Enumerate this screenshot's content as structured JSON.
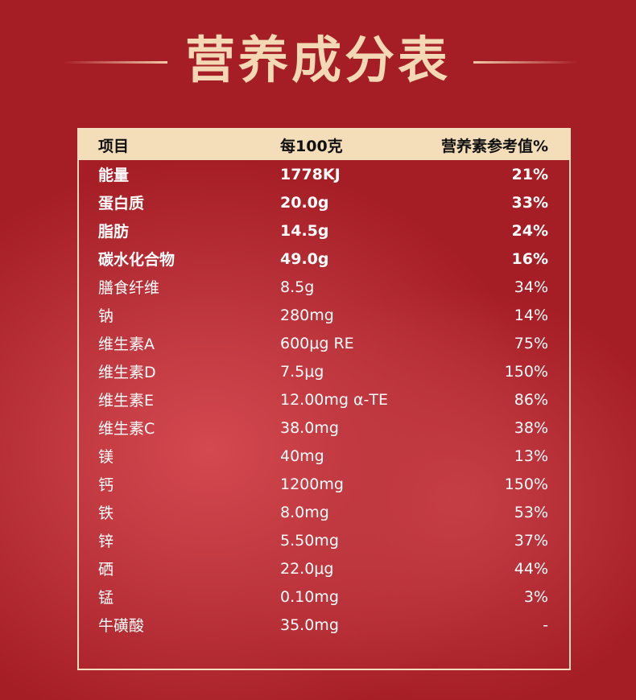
{
  "title": "营养成分表",
  "table": {
    "headers": [
      "项目",
      "每100克",
      "营养素参考值%"
    ],
    "rows": [
      {
        "item": "能量",
        "per100g": "1778KJ",
        "nrv": "21%",
        "bold": true
      },
      {
        "item": "蛋白质",
        "per100g": "20.0g",
        "nrv": "33%",
        "bold": true
      },
      {
        "item": "脂肪",
        "per100g": "14.5g",
        "nrv": "24%",
        "bold": true
      },
      {
        "item": "碳水化合物",
        "per100g": "49.0g",
        "nrv": "16%",
        "bold": true
      },
      {
        "item": "膳食纤维",
        "per100g": "8.5g",
        "nrv": "34%"
      },
      {
        "item": "钠",
        "per100g": "280mg",
        "nrv": "14%"
      },
      {
        "item": "维生素A",
        "per100g": "600μg RE",
        "nrv": "75%"
      },
      {
        "item": "维生素D",
        "per100g": "7.5μg",
        "nrv": "150%"
      },
      {
        "item": "维生素E",
        "per100g": "12.00mg α-TE",
        "nrv": "86%"
      },
      {
        "item": "维生素C",
        "per100g": "38.0mg",
        "nrv": "38%"
      },
      {
        "item": "镁",
        "per100g": "40mg",
        "nrv": "13%"
      },
      {
        "item": "钙",
        "per100g": "1200mg",
        "nrv": "150%"
      },
      {
        "item": "铁",
        "per100g": "8.0mg",
        "nrv": "53%"
      },
      {
        "item": "锌",
        "per100g": "5.50mg",
        "nrv": "37%"
      },
      {
        "item": "硒",
        "per100g": "22.0μg",
        "nrv": "44%"
      },
      {
        "item": "锰",
        "per100g": "0.10mg",
        "nrv": "3%"
      },
      {
        "item": "牛磺酸",
        "per100g": "35.0mg",
        "nrv": "-"
      }
    ]
  },
  "colors": {
    "background": "#a61e25",
    "title": "#f2d8b4",
    "header_band": "#f4ddb9",
    "border": "#f3dcc0"
  }
}
